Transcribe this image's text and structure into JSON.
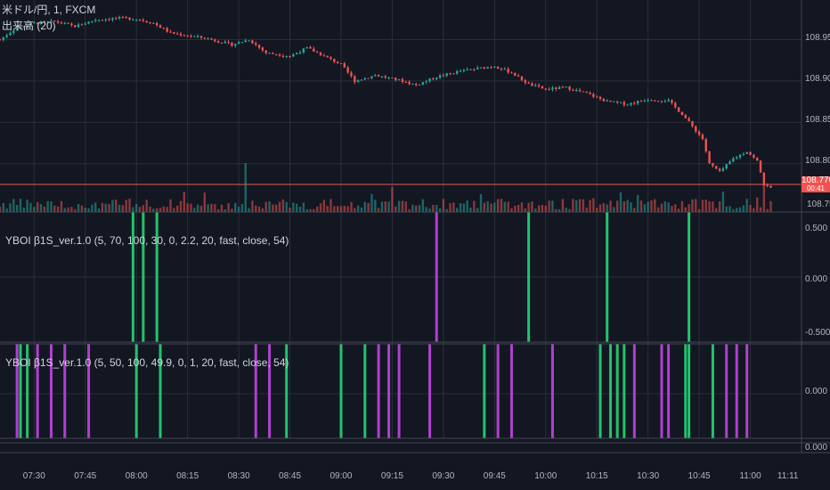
{
  "symbol": {
    "title": "米ドル/円, 1, FXCM",
    "volume_label": "出来高 (20)"
  },
  "price_axis": {
    "labels": [
      "108.950",
      "108.900",
      "108.850",
      "108.800",
      "108.770",
      "108.750"
    ]
  },
  "last_price": {
    "value": "108.770",
    "countdown": "00:41",
    "color": "#ef5350"
  },
  "indicator1": {
    "label": "YBOI β1S_ver.1.0 (5, 70, 100, 30, 0, 2.2, 20, fast, close, 54)",
    "axis_labels": [
      "0.500",
      "0.000",
      "-0.500"
    ],
    "signals": [
      {
        "time": "07:59",
        "color": "green"
      },
      {
        "time": "08:02",
        "color": "green"
      },
      {
        "time": "08:06",
        "color": "green"
      },
      {
        "time": "09:28",
        "color": "purple"
      },
      {
        "time": "09:55",
        "color": "green"
      },
      {
        "time": "10:18",
        "color": "green"
      },
      {
        "time": "10:42",
        "color": "green"
      }
    ]
  },
  "indicator2": {
    "label": "YBOI β1S_ver.1.0 (5, 50, 100, 49.9, 0, 1, 20, fast, close, 54)",
    "axis_labels": [
      "0.000",
      "0.000"
    ],
    "signals": [
      {
        "time": "07:25",
        "color": "purple"
      },
      {
        "time": "07:26",
        "color": "green"
      },
      {
        "time": "07:28",
        "color": "green"
      },
      {
        "time": "07:31",
        "color": "purple"
      },
      {
        "time": "07:35",
        "color": "purple"
      },
      {
        "time": "07:39",
        "color": "purple"
      },
      {
        "time": "07:46",
        "color": "purple"
      },
      {
        "time": "08:00",
        "color": "green"
      },
      {
        "time": "08:07",
        "color": "green"
      },
      {
        "time": "08:35",
        "color": "purple"
      },
      {
        "time": "08:39",
        "color": "purple"
      },
      {
        "time": "08:44",
        "color": "green"
      },
      {
        "time": "09:00",
        "color": "green"
      },
      {
        "time": "09:07",
        "color": "green"
      },
      {
        "time": "09:11",
        "color": "purple"
      },
      {
        "time": "09:14",
        "color": "purple"
      },
      {
        "time": "09:17",
        "color": "purple"
      },
      {
        "time": "09:26",
        "color": "purple"
      },
      {
        "time": "09:42",
        "color": "green"
      },
      {
        "time": "09:46",
        "color": "purple"
      },
      {
        "time": "09:50",
        "color": "purple"
      },
      {
        "time": "10:02",
        "color": "purple"
      },
      {
        "time": "10:16",
        "color": "green"
      },
      {
        "time": "10:19",
        "color": "green"
      },
      {
        "time": "10:21",
        "color": "green"
      },
      {
        "time": "10:23",
        "color": "green"
      },
      {
        "time": "10:26",
        "color": "purple"
      },
      {
        "time": "10:34",
        "color": "purple"
      },
      {
        "time": "10:36",
        "color": "purple"
      },
      {
        "time": "10:41",
        "color": "green"
      },
      {
        "time": "10:42",
        "color": "green"
      },
      {
        "time": "10:49",
        "color": "green"
      },
      {
        "time": "10:53",
        "color": "purple"
      },
      {
        "time": "10:56",
        "color": "purple"
      },
      {
        "time": "10:59",
        "color": "purple"
      }
    ]
  },
  "colors": {
    "up": "#26a69a",
    "down": "#ef5350",
    "signal_green": "#22c36b",
    "signal_purple": "#b040d0",
    "background": "#131722",
    "grid": "#2a2e39"
  },
  "chart_data": {
    "type": "candlestick",
    "title": "米ドル/円, 1, FXCM",
    "y_axis_labels": [
      "108.950",
      "108.900",
      "108.850",
      "108.800",
      "108.750"
    ],
    "x_axis_labels": [
      "07:30",
      "07:45",
      "08:00",
      "08:15",
      "08:30",
      "08:45",
      "09:00",
      "09:15",
      "09:30",
      "09:45",
      "10:00",
      "10:15",
      "10:30",
      "10:45",
      "11:00",
      "11:11"
    ],
    "ylim": [
      108.748,
      108.985
    ],
    "x_start": "07:20",
    "x_end": "11:15",
    "price_path": [
      [
        "07:20",
        108.95
      ],
      [
        "07:24",
        108.962
      ],
      [
        "07:30",
        108.97
      ],
      [
        "07:36",
        108.972
      ],
      [
        "07:42",
        108.966
      ],
      [
        "07:48",
        108.974
      ],
      [
        "07:55",
        108.976
      ],
      [
        "08:00",
        108.975
      ],
      [
        "08:05",
        108.97
      ],
      [
        "08:10",
        108.958
      ],
      [
        "08:20",
        108.952
      ],
      [
        "08:28",
        108.944
      ],
      [
        "08:33",
        108.95
      ],
      [
        "08:38",
        108.934
      ],
      [
        "08:45",
        108.93
      ],
      [
        "08:50",
        108.94
      ],
      [
        "08:55",
        108.93
      ],
      [
        "09:00",
        108.92
      ],
      [
        "09:04",
        108.9
      ],
      [
        "09:10",
        108.907
      ],
      [
        "09:18",
        108.9
      ],
      [
        "09:22",
        108.895
      ],
      [
        "09:28",
        108.905
      ],
      [
        "09:35",
        108.912
      ],
      [
        "09:45",
        108.918
      ],
      [
        "09:50",
        108.91
      ],
      [
        "09:55",
        108.896
      ],
      [
        "10:00",
        108.89
      ],
      [
        "10:06",
        108.892
      ],
      [
        "10:12",
        108.885
      ],
      [
        "10:18",
        108.875
      ],
      [
        "10:24",
        108.872
      ],
      [
        "10:30",
        108.878
      ],
      [
        "10:36",
        108.876
      ],
      [
        "10:40",
        108.86
      ],
      [
        "10:43",
        108.845
      ],
      [
        "10:46",
        108.83
      ],
      [
        "10:48",
        108.8
      ],
      [
        "10:51",
        108.79
      ],
      [
        "10:55",
        108.806
      ],
      [
        "10:59",
        108.815
      ],
      [
        "11:02",
        108.803
      ],
      [
        "11:04",
        108.775
      ],
      [
        "11:06",
        108.77
      ]
    ],
    "volume_ylim": [
      0,
      1
    ],
    "volume_note": "relative"
  }
}
